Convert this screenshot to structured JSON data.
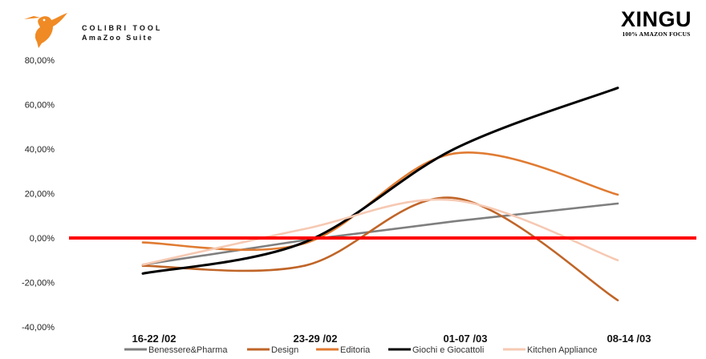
{
  "header": {
    "brand_title": "COLIBRI TOOL",
    "brand_subtitle": "AmaZoo Suite",
    "partner_logo": "XINGU",
    "partner_tagline": "100% AMAZON FOCUS"
  },
  "icons": {
    "brand": "hummingbird-icon"
  },
  "colors": {
    "zero_line": "#ff0000",
    "brand_orange": "#f08a24"
  },
  "chart_data": {
    "type": "line",
    "categories": [
      "16-22 /02",
      "23-29 /02",
      "01-07 /03",
      "08-14 /03"
    ],
    "ylim": [
      -40,
      80
    ],
    "yticks": [
      -40,
      -20,
      0,
      20,
      40,
      60,
      80
    ],
    "ytick_labels": [
      "-40,00%",
      "-20,00%",
      "0,00%",
      "20,00%",
      "40,00%",
      "60,00%",
      "80,00%"
    ],
    "grid": false,
    "legend_position": "bottom",
    "reference_line": {
      "value": 0,
      "color": "#ff0000"
    },
    "series": [
      {
        "name": "Benessere&Pharma",
        "color": "#7f7f7f",
        "values": [
          -12,
          -1,
          7.5,
          15.5
        ]
      },
      {
        "name": "Design",
        "color": "#c06528",
        "values": [
          -12.5,
          -12.5,
          18,
          -28
        ]
      },
      {
        "name": "Editoria",
        "color": "#e07b32",
        "values": [
          -2,
          -2.5,
          38,
          19.5
        ]
      },
      {
        "name": "Giochi e Giocattoli",
        "color": "#000000",
        "values": [
          -16,
          -2,
          40,
          67.5
        ]
      },
      {
        "name": "Kitchen Appliance",
        "color": "#f6c9b3",
        "values": [
          -12,
          4,
          17,
          -10
        ]
      }
    ]
  }
}
